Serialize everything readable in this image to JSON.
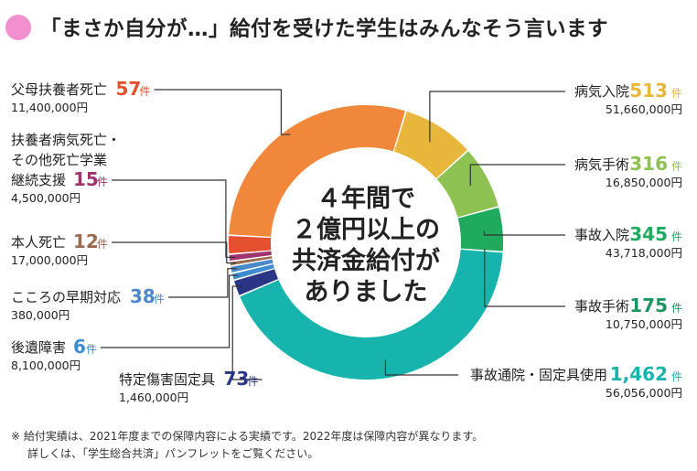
{
  "header": {
    "title": "「まさか自分が…」給付を受けた学生はみんなそう言います",
    "dot_color": "#f48fcf"
  },
  "center_lines": [
    "４年間で",
    "２億円以上の",
    "共済金給付が",
    "ありました"
  ],
  "unit": "件",
  "footnote": [
    "※ 給付実績は、2021年度までの保障内容による実績です。2022年度は保障内容が異なります。",
    "詳しくは、「学生総合共済」パンフレットをご覧ください。"
  ],
  "chart_data": {
    "type": "pie",
    "title": "",
    "categories": [
      {
        "label_lines": [
          "病気入院"
        ],
        "count": 513,
        "count_text": "513",
        "amount": "51,660,000円",
        "color": "#e8b63a"
      },
      {
        "label_lines": [
          "病気手術"
        ],
        "count": 316,
        "count_text": "316",
        "amount": "16,850,000円",
        "color": "#8dc152"
      },
      {
        "label_lines": [
          "事故入院"
        ],
        "count": 345,
        "count_text": "345",
        "amount": "43,718,000円",
        "color": "#1faa5e"
      },
      {
        "label_lines": [
          "事故手術"
        ],
        "count": 175,
        "count_text": "175",
        "amount": "10,750,000円",
        "color": "#1a9660"
      },
      {
        "label_lines": [
          "事故通院・固定具使用"
        ],
        "count": 1462,
        "count_text": "1,462",
        "amount": "56,056,000円",
        "color": "#17b3ad"
      },
      {
        "label_lines": [
          "特定傷害固定具"
        ],
        "count": 73,
        "count_text": "73",
        "amount": "1,460,000円",
        "color": "#2a3585"
      },
      {
        "label_lines": [
          "後遺障害"
        ],
        "count": 6,
        "count_text": "6",
        "amount": "8,100,000円",
        "color": "#3d8cd0"
      },
      {
        "label_lines": [
          "こころの早期対応"
        ],
        "count": 38,
        "count_text": "38",
        "amount": "380,000円",
        "color": "#4a88c8"
      },
      {
        "label_lines": [
          "本人死亡"
        ],
        "count": 12,
        "count_text": "12",
        "amount": "17,000,000円",
        "color": "#9a6b4f"
      },
      {
        "label_lines": [
          "扶養者病気死亡・",
          "その他死亡学業",
          "継続支援"
        ],
        "count": 15,
        "count_text": "15",
        "amount": "4,500,000円",
        "color": "#a0336e"
      },
      {
        "label_lines": [
          "父母扶養者死亡"
        ],
        "count": 57,
        "count_text": "57",
        "amount": "11,400,000円",
        "color": "#e5512e"
      }
    ]
  }
}
